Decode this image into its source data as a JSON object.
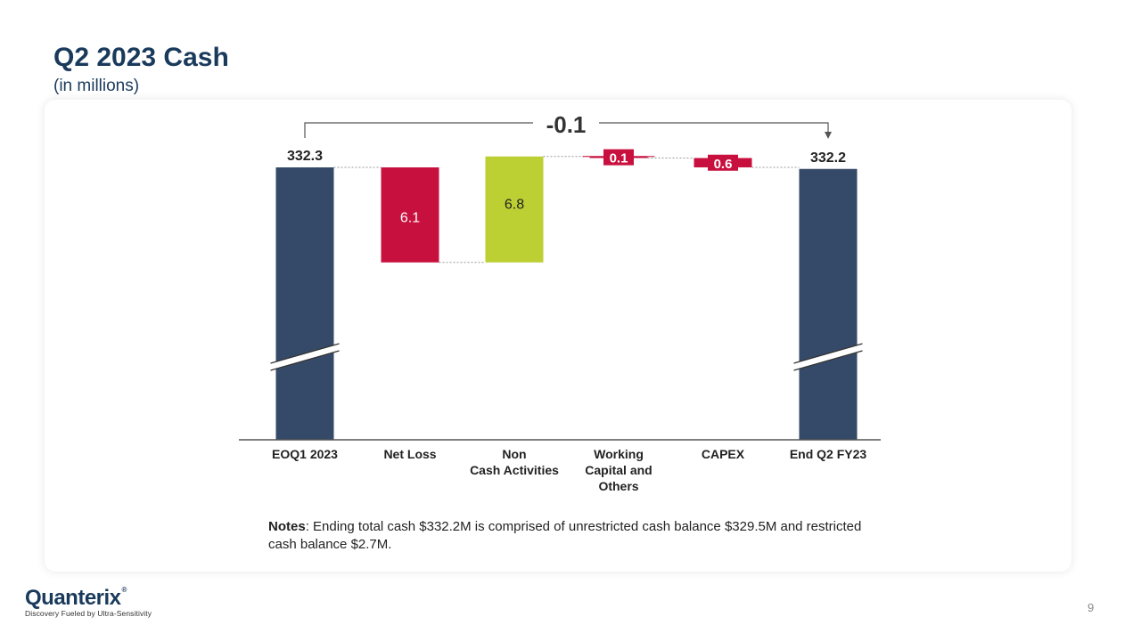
{
  "slide": {
    "title": "Q2 2023 Cash",
    "subtitle": "(in millions)",
    "notes_label": "Notes",
    "notes_text": ": Ending total cash $332.2M is comprised of unrestricted cash balance $329.5M and restricted cash balance $2.7M.",
    "page_number": "9"
  },
  "logo": {
    "name": "Quanterix",
    "trademark": "®",
    "tagline": "Discovery Fueled by Ultra-Sensitivity"
  },
  "colors": {
    "total": "#354a68",
    "negative": "#c8103e",
    "positive": "#bccf33",
    "title": "#1a3a5c"
  },
  "chart_data": {
    "type": "bar",
    "subtype": "waterfall",
    "axis_break": true,
    "categories": [
      [
        "EOQ1 2023"
      ],
      [
        "Net Loss"
      ],
      [
        "Non",
        "Cash Activities"
      ],
      [
        "Working",
        "Capital and",
        "Others"
      ],
      [
        "CAPEX"
      ],
      [
        "End Q2 FY23"
      ]
    ],
    "bars": [
      {
        "kind": "total",
        "value": 332.3,
        "label": "332.3"
      },
      {
        "kind": "decrease",
        "value": -6.1,
        "label": "6.1"
      },
      {
        "kind": "increase",
        "value": 6.8,
        "label": "6.8"
      },
      {
        "kind": "decrease",
        "value": -0.1,
        "label": "0.1"
      },
      {
        "kind": "decrease",
        "value": -0.6,
        "label": "0.6"
      },
      {
        "kind": "total",
        "value": 332.2,
        "label": "332.2"
      }
    ],
    "net_change": {
      "value": -0.1,
      "label": "-0.1",
      "from_index": 0,
      "to_index": 5
    }
  }
}
